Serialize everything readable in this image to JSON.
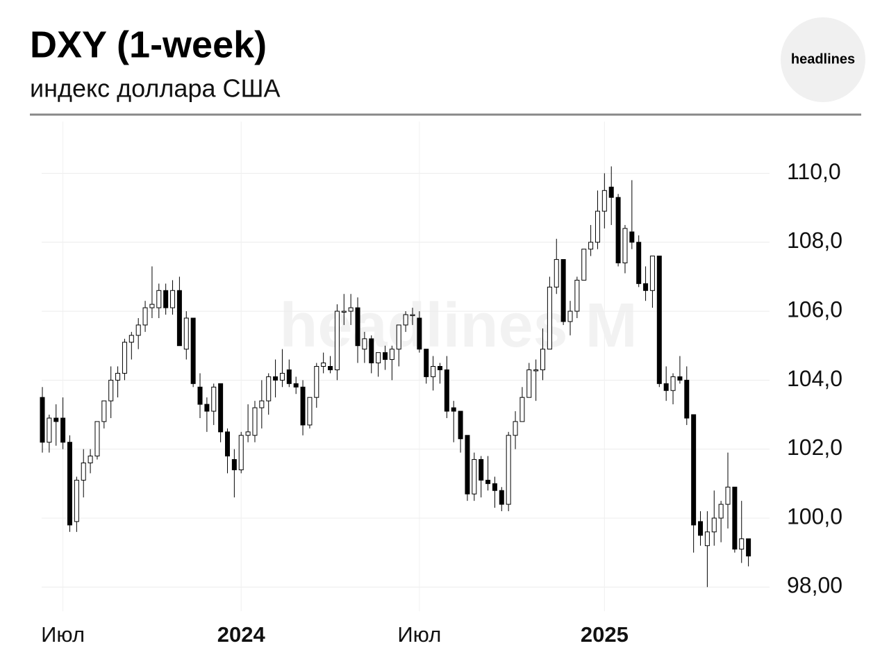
{
  "header": {
    "title": "DXY (1-week)",
    "subtitle": "индекс доллара США",
    "logo": "headlines"
  },
  "chart_data": {
    "type": "candlestick",
    "watermark": "headlines M",
    "open": [
      103.5,
      102.2,
      102.9,
      102.9,
      102.2,
      99.9,
      101.1,
      101.6,
      101.8,
      102.8,
      103.4,
      104.0,
      104.2,
      105.1,
      105.3,
      105.6,
      106.1,
      106.1,
      106.6,
      106.1,
      106.6,
      104.9,
      105.8,
      103.8,
      103.3,
      103.1,
      103.9,
      102.5,
      101.7,
      101.4,
      102.4,
      102.4,
      103.2,
      103.4,
      104.1,
      104.0,
      104.3,
      103.9,
      103.8,
      102.7,
      103.5,
      104.4,
      104.4,
      104.3,
      106.0,
      106.0,
      106.1,
      104.9,
      105.2,
      104.5,
      104.8,
      104.6,
      104.9,
      105.6,
      105.9,
      105.8,
      104.9,
      104.1,
      104.4,
      104.3,
      103.2,
      103.1,
      102.4,
      100.7,
      101.7,
      101.1,
      101.0,
      100.8,
      100.4,
      102.4,
      102.8,
      103.5,
      104.3,
      104.3,
      104.9,
      106.7,
      107.5,
      105.7,
      106.0,
      106.9,
      107.8,
      108.0,
      108.9,
      109.6,
      109.3,
      107.4,
      108.3,
      108.0,
      106.8,
      106.6,
      107.6,
      103.9,
      103.7,
      104.1,
      104.0,
      103.0,
      99.9,
      99.2,
      99.6,
      100.0,
      100.4,
      100.9,
      99.1,
      99.4
    ],
    "high": [
      103.8,
      103.0,
      103.3,
      103.5,
      102.4,
      101.2,
      102.0,
      102.0,
      102.8,
      103.3,
      104.4,
      104.4,
      105.2,
      105.4,
      105.8,
      106.3,
      107.3,
      106.8,
      106.8,
      106.9,
      107.0,
      106.0,
      105.8,
      104.2,
      103.5,
      103.9,
      103.9,
      102.6,
      102.0,
      102.5,
      103.3,
      103.4,
      104.0,
      104.2,
      104.6,
      104.9,
      104.6,
      104.1,
      104.0,
      103.5,
      104.5,
      104.8,
      104.7,
      106.2,
      106.5,
      106.5,
      106.4,
      105.4,
      105.3,
      104.8,
      105.0,
      105.0,
      105.6,
      106.0,
      106.1,
      106.0,
      104.9,
      104.7,
      104.5,
      104.7,
      103.4,
      103.1,
      102.4,
      101.9,
      101.8,
      101.8,
      101.2,
      100.9,
      102.5,
      103.1,
      103.8,
      104.5,
      104.6,
      105.5,
      107.0,
      108.1,
      107.5,
      106.3,
      107.0,
      107.8,
      108.5,
      109.5,
      110.0,
      110.2,
      109.4,
      108.5,
      109.8,
      108.2,
      107.3,
      107.6,
      107.6,
      104.4,
      104.2,
      104.7,
      104.4,
      103.0,
      100.2,
      100.2,
      100.8,
      100.5,
      101.9,
      100.9,
      100.5,
      99.4
    ],
    "low": [
      101.9,
      101.9,
      102.1,
      102.0,
      99.6,
      99.6,
      100.6,
      101.3,
      101.7,
      102.6,
      102.9,
      103.5,
      104.0,
      104.6,
      104.9,
      105.4,
      105.8,
      105.8,
      105.9,
      105.9,
      105.0,
      104.6,
      103.8,
      102.9,
      102.5,
      102.7,
      102.2,
      101.3,
      100.6,
      101.3,
      102.2,
      102.2,
      102.6,
      103.0,
      103.5,
      103.8,
      103.8,
      103.6,
      102.4,
      102.6,
      103.2,
      104.2,
      104.2,
      104.0,
      105.6,
      105.6,
      104.5,
      104.5,
      104.2,
      104.1,
      104.3,
      104.0,
      104.4,
      105.4,
      105.6,
      104.8,
      103.9,
      103.7,
      103.9,
      102.9,
      102.2,
      101.9,
      100.5,
      100.5,
      100.6,
      100.8,
      100.3,
      100.2,
      100.2,
      102.0,
      102.8,
      103.5,
      103.4,
      104.0,
      104.9,
      106.5,
      105.6,
      105.3,
      105.8,
      106.9,
      107.6,
      107.8,
      108.4,
      108.5,
      107.3,
      107.1,
      107.8,
      106.7,
      106.3,
      106.1,
      103.8,
      103.4,
      103.3,
      103.9,
      102.7,
      99.0,
      99.2,
      98.0,
      99.2,
      99.3,
      99.7,
      99.0,
      98.7,
      98.6
    ],
    "close": [
      102.2,
      102.9,
      102.8,
      102.2,
      99.8,
      101.1,
      101.6,
      101.8,
      102.8,
      103.4,
      104.0,
      104.2,
      105.1,
      105.3,
      105.6,
      106.1,
      106.2,
      106.6,
      106.1,
      106.6,
      105.0,
      105.8,
      103.9,
      103.3,
      103.1,
      103.8,
      102.5,
      101.8,
      101.4,
      102.4,
      102.5,
      103.2,
      103.4,
      104.1,
      104.0,
      104.2,
      103.9,
      103.8,
      102.7,
      103.5,
      104.4,
      104.5,
      104.3,
      106.0,
      106.0,
      106.1,
      105.0,
      105.2,
      104.5,
      104.8,
      104.6,
      104.9,
      105.6,
      105.9,
      105.9,
      104.9,
      104.1,
      104.4,
      104.3,
      103.1,
      103.1,
      102.3,
      100.7,
      101.7,
      101.1,
      101.0,
      100.8,
      100.4,
      102.4,
      102.8,
      103.5,
      104.3,
      104.3,
      104.9,
      106.7,
      107.5,
      105.7,
      106.0,
      106.9,
      107.8,
      108.0,
      108.9,
      109.5,
      109.3,
      107.4,
      108.4,
      108.0,
      106.8,
      106.6,
      107.6,
      103.9,
      103.7,
      104.1,
      104.0,
      102.9,
      99.8,
      99.5,
      99.6,
      100.0,
      100.4,
      100.9,
      99.1,
      99.4,
      98.9
    ],
    "xticks": [
      {
        "value": 3,
        "label": "Июл"
      },
      {
        "value": 29,
        "label": "2024"
      },
      {
        "value": 55,
        "label": "Июл"
      },
      {
        "value": 82,
        "label": "2025"
      }
    ],
    "ylim": [
      97.3,
      111.5
    ],
    "yticks": [
      {
        "value": 98,
        "label": "98,00"
      },
      {
        "value": 100,
        "label": "100,0"
      },
      {
        "value": 102,
        "label": "102,0"
      },
      {
        "value": 104,
        "label": "104,0"
      },
      {
        "value": 106,
        "label": "106,0"
      },
      {
        "value": 108,
        "label": "108,0"
      },
      {
        "value": 110,
        "label": "110,0"
      }
    ],
    "grid": true,
    "up_color": "#ffffff",
    "down_color": "#000000"
  }
}
